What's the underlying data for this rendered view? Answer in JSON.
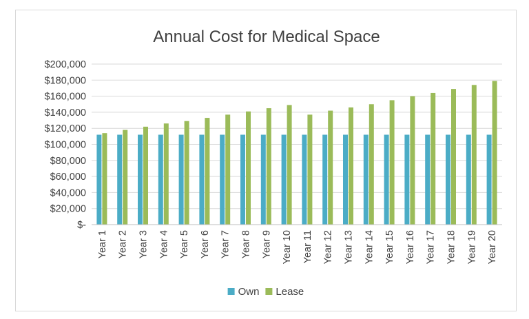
{
  "chart_data": {
    "type": "bar",
    "title": "Annual Cost for Medical Space",
    "xlabel": "",
    "ylabel": "",
    "categories": [
      "Year 1",
      "Year 2",
      "Year 3",
      "Year 4",
      "Year 5",
      "Year 6",
      "Year 7",
      "Year 8",
      "Year 9",
      "Year 10",
      "Year 11",
      "Year 12",
      "Year 13",
      "Year 14",
      "Year 15",
      "Year 16",
      "Year 17",
      "Year 18",
      "Year 19",
      "Year 20"
    ],
    "series": [
      {
        "name": "Own",
        "color": "#4BACC6",
        "values": [
          112000,
          112000,
          112000,
          112000,
          112000,
          112000,
          112000,
          112000,
          112000,
          112000,
          112000,
          112000,
          112000,
          112000,
          112000,
          112000,
          112000,
          112000,
          112000,
          112000
        ]
      },
      {
        "name": "Lease",
        "color": "#9BBB59",
        "values": [
          114000,
          118000,
          122000,
          126000,
          129000,
          133000,
          137000,
          141000,
          145000,
          149000,
          137000,
          142000,
          146000,
          150000,
          155000,
          160000,
          164000,
          169000,
          174000,
          179000
        ]
      }
    ],
    "ylim": [
      0,
      200000
    ],
    "yticks": [
      0,
      20000,
      40000,
      60000,
      80000,
      100000,
      120000,
      140000,
      160000,
      180000,
      200000
    ],
    "ytick_labels": [
      "$-",
      "$20,000",
      "$40,000",
      "$60,000",
      "$80,000",
      "$100,000",
      "$120,000",
      "$140,000",
      "$160,000",
      "$180,000",
      "$200,000"
    ],
    "grid": true,
    "legend_position": "bottom"
  }
}
